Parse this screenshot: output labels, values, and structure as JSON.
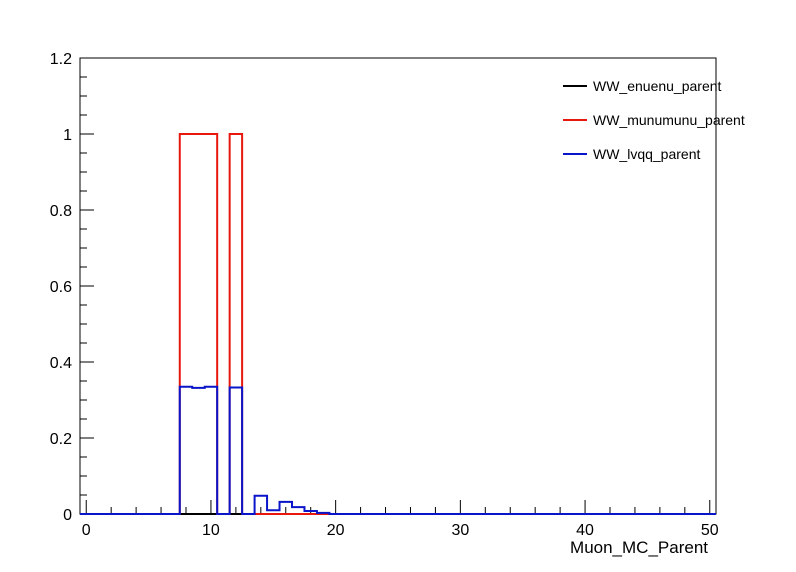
{
  "chart_data": {
    "type": "step-histogram",
    "xlabel": "Muon_MC_Parent",
    "ylabel": "",
    "xlim": [
      -0.5,
      50.5
    ],
    "ylim": [
      0,
      1.2
    ],
    "bin_edges_start": -0.5,
    "bin_width": 1,
    "n_bins": 51,
    "x_ticks": [
      0,
      10,
      20,
      30,
      40,
      50
    ],
    "y_ticks": [
      0,
      0.2,
      0.4,
      0.6,
      0.8,
      1,
      1.2
    ],
    "x_tick_labels": [
      "0",
      "10",
      "20",
      "30",
      "40",
      "50"
    ],
    "y_tick_labels": [
      "0",
      "0.2",
      "0.4",
      "0.6",
      "0.8",
      "1",
      "1.2"
    ],
    "legend_position": "top-right",
    "series": [
      {
        "name": "WW_enuenu_parent",
        "color": "#000000",
        "bins": {}
      },
      {
        "name": "WW_munumunu_parent",
        "color": "#e8170d",
        "bins": {
          "8": 1.0,
          "9": 1.0,
          "10": 1.0,
          "12": 1.0
        }
      },
      {
        "name": "WW_lvqq_parent",
        "color": "#0a14c8",
        "bins": {
          "8": 0.335,
          "9": 0.332,
          "10": 0.335,
          "12": 0.333,
          "14": 0.048,
          "15": 0.01,
          "16": 0.032,
          "17": 0.018,
          "18": 0.008,
          "19": 0.003
        }
      }
    ]
  }
}
